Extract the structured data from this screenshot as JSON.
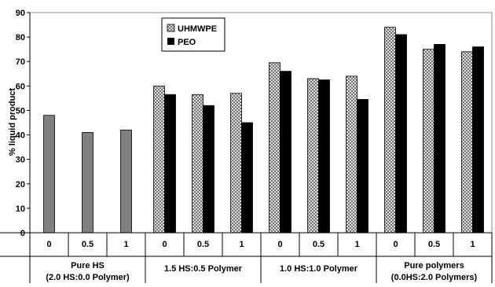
{
  "chart_data": {
    "type": "bar",
    "ylabel": "% liquid product",
    "ylim": [
      0,
      90
    ],
    "yticks": [
      0,
      10,
      20,
      30,
      40,
      50,
      60,
      70,
      80,
      90
    ],
    "grid": false,
    "legend_position": "top-left",
    "groups": [
      {
        "name": "Pure HS",
        "subname": "(2.0 HS:0.0 Polymer)",
        "categories": [
          "0",
          "0.5",
          "1"
        ]
      },
      {
        "name": "1.5 HS:0.5 Polymer",
        "subname": "",
        "categories": [
          "0",
          "0.5",
          "1"
        ]
      },
      {
        "name": "1.0 HS:1.0 Polymer",
        "subname": "",
        "categories": [
          "0",
          "0.5",
          "1"
        ]
      },
      {
        "name": "Pure polymers",
        "subname": "(0.0HS:2.0 Polymers)",
        "categories": [
          "0",
          "0.5",
          "1"
        ]
      }
    ],
    "pure_hs_values": [
      48,
      41,
      42
    ],
    "series": [
      {
        "name": "UHMWPE",
        "color": "#c8c8c8",
        "pattern": "crosshatch",
        "values": [
          null,
          null,
          null,
          60,
          56.5,
          57,
          69.5,
          63,
          64,
          84,
          75,
          74
        ]
      },
      {
        "name": "PEO",
        "color": "#000000",
        "values": [
          null,
          null,
          null,
          56.5,
          52,
          45,
          66,
          62.5,
          54.5,
          81,
          77,
          76
        ]
      }
    ],
    "pure_hs_color": "#808080"
  }
}
